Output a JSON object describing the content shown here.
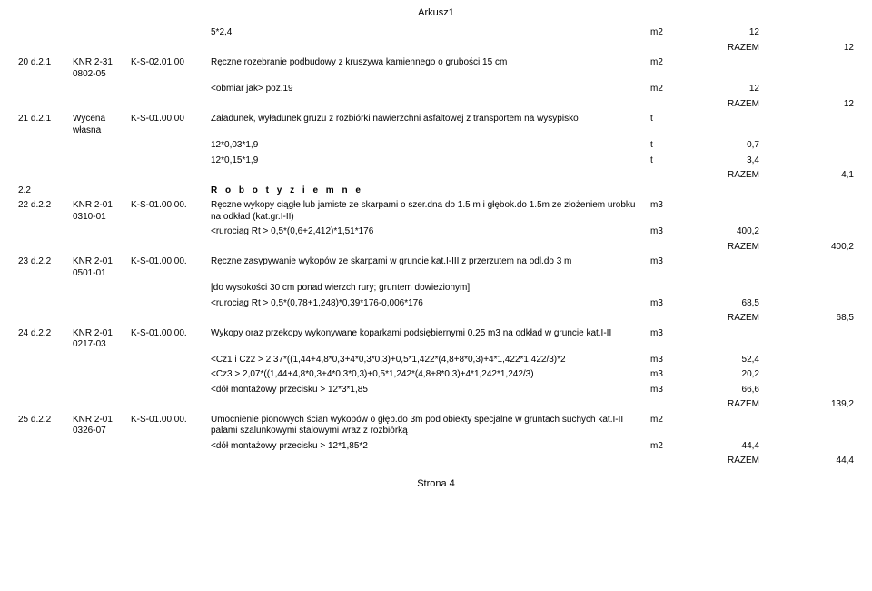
{
  "header": "Arkusz1",
  "footer": "Strona 4",
  "rows": [
    {
      "desc": "5*2,4",
      "unit": "m2",
      "qty": "12"
    },
    {
      "razem_label": "RAZEM",
      "razem_val": "12"
    },
    {
      "pos": "20 d.2.1",
      "ref": "KNR 2-31 0802-05",
      "code": "K-S-02.01.00",
      "desc": "Ręczne rozebranie podbudowy z kruszywa kamiennego o grubości 15 cm",
      "unit": "m2"
    },
    {
      "desc": "<obmiar jak> poz.19",
      "unit": "m2",
      "qty": "12"
    },
    {
      "razem_label": "RAZEM",
      "razem_val": "12"
    },
    {
      "pos": "21 d.2.1",
      "ref": "Wycena własna",
      "code": "K-S-01.00.00",
      "desc": "Załadunek, wyładunek gruzu z rozbiórki nawierzchni asfaltowej z transportem na wysypisko",
      "unit": "t"
    },
    {
      "desc": "12*0,03*1,9",
      "unit": "t",
      "qty": "0,7"
    },
    {
      "desc": "12*0,15*1,9",
      "unit": "t",
      "qty": "3,4"
    },
    {
      "razem_label": "RAZEM",
      "razem_val": "4,1"
    },
    {
      "pos": "2.2",
      "section": "R o b o t y    z i e m n e"
    },
    {
      "pos": "22 d.2.2",
      "ref": "KNR 2-01 0310-01",
      "code": "K-S-01.00.00.",
      "desc": "Ręczne wykopy ciągłe lub jamiste ze skarpami o szer.dna do 1.5 m i głębok.do 1.5m ze złożeniem urobku na odkład (kat.gr.I-II)",
      "unit": "m3"
    },
    {
      "desc": "<rurociąg Rt > 0,5*(0,6+2,412)*1,51*176",
      "unit": "m3",
      "qty": "400,2"
    },
    {
      "razem_label": "RAZEM",
      "razem_val": "400,2"
    },
    {
      "pos": "23 d.2.2",
      "ref": "KNR 2-01 0501-01",
      "code": "K-S-01.00.00.",
      "desc": "Ręczne zasypywanie wykopów ze skarpami w gruncie kat.I-III z przerzutem na odl.do 3 m",
      "unit": "m3"
    },
    {
      "desc": "[do wysokości 30 cm ponad wierzch rury; gruntem dowiezionym]"
    },
    {
      "desc": "<rurociąg Rt > 0,5*(0,78+1,248)*0,39*176-0,006*176",
      "unit": "m3",
      "qty": "68,5"
    },
    {
      "razem_label": "RAZEM",
      "razem_val": "68,5"
    },
    {
      "pos": "24 d.2.2",
      "ref": "KNR 2-01 0217-03",
      "code": "K-S-01.00.00.",
      "desc": "Wykopy oraz przekopy wykonywane koparkami podsiębiernymi 0.25 m3 na odkład w gruncie kat.I-II",
      "unit": "m3"
    },
    {
      "desc": "<Cz1 i Cz2 > 2,37*((1,44+4,8*0,3+4*0,3*0,3)+0,5*1,422*(4,8+8*0,3)+4*1,422*1,422/3)*2",
      "unit": "m3",
      "qty": "52,4"
    },
    {
      "desc": "<Cz3 > 2,07*((1,44+4,8*0,3+4*0,3*0,3)+0,5*1,242*(4,8+8*0,3)+4*1,242*1,242/3)",
      "unit": "m3",
      "qty": "20,2"
    },
    {
      "desc": "<dół montażowy przecisku > 12*3*1,85",
      "unit": "m3",
      "qty": "66,6"
    },
    {
      "razem_label": "RAZEM",
      "razem_val": "139,2"
    },
    {
      "pos": "25 d.2.2",
      "ref": "KNR 2-01 0326-07",
      "code": "K-S-01.00.00.",
      "desc": "Umocnienie pionowych ścian wykopów o głęb.do 3m pod obiekty specjalne w gruntach suchych kat.I-II palami szalunkowymi stalowymi wraz z rozbiórką",
      "unit": "m2"
    },
    {
      "desc": "<dół montażowy przecisku > 12*1,85*2",
      "unit": "m2",
      "qty": "44,4"
    },
    {
      "razem_label": "RAZEM",
      "razem_val": "44,4"
    }
  ]
}
